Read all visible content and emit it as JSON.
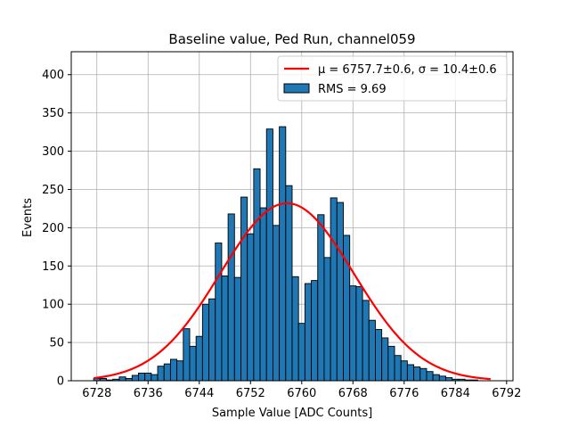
{
  "chart_data": {
    "type": "bar",
    "title": "Baseline value, Ped Run, channel059",
    "xlabel": "Sample Value [ADC Counts]",
    "ylabel": "Events",
    "xlim": [
      6724,
      6793
    ],
    "ylim": [
      0,
      430
    ],
    "xticks": [
      "6728",
      "6736",
      "6744",
      "6752",
      "6760",
      "6768",
      "6776",
      "6784",
      "6792"
    ],
    "xtick_values": [
      6728,
      6736,
      6744,
      6752,
      6760,
      6768,
      6776,
      6784,
      6792
    ],
    "yticks": [
      "0",
      "50",
      "100",
      "150",
      "200",
      "250",
      "300",
      "350",
      "400"
    ],
    "ytick_values": [
      0,
      50,
      100,
      150,
      200,
      250,
      300,
      350,
      400
    ],
    "grid": true,
    "legend_position": "top-right",
    "histogram": {
      "name": "RMS = 9.69",
      "bin_width": 1,
      "bin_start": 6727.5,
      "values": [
        3,
        3,
        1,
        2,
        5,
        3,
        7,
        10,
        10,
        8,
        19,
        22,
        28,
        26,
        68,
        45,
        58,
        100,
        107,
        180,
        137,
        218,
        135,
        240,
        192,
        277,
        226,
        329,
        203,
        332,
        255,
        136,
        75,
        127,
        131,
        217,
        161,
        239,
        233,
        190,
        124,
        123,
        105,
        79,
        67,
        56,
        45,
        33,
        26,
        21,
        18,
        16,
        12,
        8,
        6,
        4,
        2,
        2,
        1,
        1
      ]
    },
    "fit": {
      "name": "μ = 6757.7±0.6, σ = 10.4±0.6",
      "mu": 6757.7,
      "sigma": 10.4,
      "amplitude": 232,
      "x_range": [
        6727.5,
        6789.5
      ]
    },
    "colors": {
      "bar_fill": "#1f77b4",
      "bar_edge": "#000000",
      "fit_line": "#ff0000",
      "grid": "#b0b0b0"
    }
  }
}
